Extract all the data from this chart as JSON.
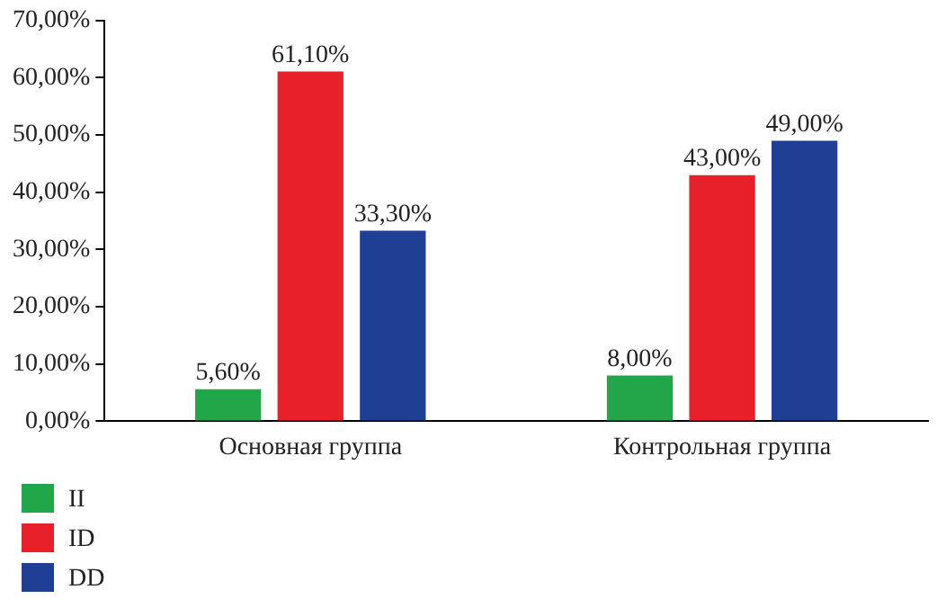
{
  "chart_data": {
    "type": "bar",
    "categories": [
      "Основная группа",
      "Контрольная группа"
    ],
    "series": [
      {
        "name": "II",
        "color": "#22a64a",
        "values": [
          5.6,
          8.0
        ],
        "value_labels": [
          "5,60%",
          "8,00%"
        ]
      },
      {
        "name": "ID",
        "color": "#e8202a",
        "values": [
          61.1,
          43.0
        ],
        "value_labels": [
          "61,10%",
          "43,00%"
        ]
      },
      {
        "name": "DD",
        "color": "#1f3f95",
        "values": [
          33.3,
          49.0
        ],
        "value_labels": [
          "33,30%",
          "49,00%"
        ]
      }
    ],
    "ylim": [
      0,
      70
    ],
    "yticks": [
      {
        "value": 0,
        "label": "0,00%"
      },
      {
        "value": 10,
        "label": "10,00%"
      },
      {
        "value": 20,
        "label": "20,00%"
      },
      {
        "value": 30,
        "label": "30,00%"
      },
      {
        "value": 40,
        "label": "40,00%"
      },
      {
        "value": 50,
        "label": "50,00%"
      },
      {
        "value": 60,
        "label": "60,00%"
      },
      {
        "value": 70,
        "label": "70,00%"
      }
    ],
    "grid": false,
    "legend": "bottom left"
  }
}
